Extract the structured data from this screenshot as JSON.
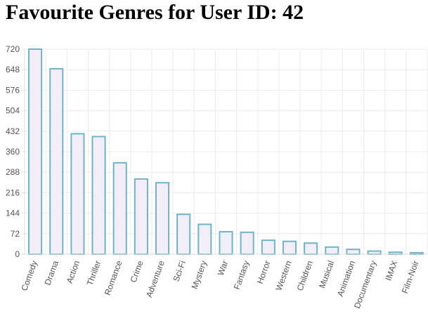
{
  "title": "Favourite Genres for User ID: 42",
  "chart_data": {
    "type": "bar",
    "title": "Favourite Genres for User ID: 42",
    "xlabel": "",
    "ylabel": "",
    "categories": [
      "Comedy",
      "Drama",
      "Action",
      "Thriller",
      "Romance",
      "Crime",
      "Adventure",
      "Sci-Fi",
      "Mystery",
      "War",
      "Fantasy",
      "Horror",
      "Western",
      "Children",
      "Musical",
      "Animation",
      "Documentary",
      "IMAX",
      "Film-Noir"
    ],
    "values": [
      720,
      651,
      423,
      413,
      321,
      264,
      251,
      140,
      105,
      79,
      77,
      49,
      45,
      39,
      25,
      17,
      11,
      7,
      5
    ],
    "ylim": [
      0,
      720
    ],
    "yticks": [
      "0",
      "72",
      "144",
      "216",
      "288",
      "360",
      "432",
      "504",
      "576",
      "648",
      "720"
    ],
    "grid": true,
    "legend": "none",
    "colors": {
      "bar_fill": "#f1eef5",
      "bar_stroke": "#6fb4c9",
      "grid": "#ebebeb",
      "axis": "#dddddd",
      "tick_text": "#555555"
    }
  }
}
